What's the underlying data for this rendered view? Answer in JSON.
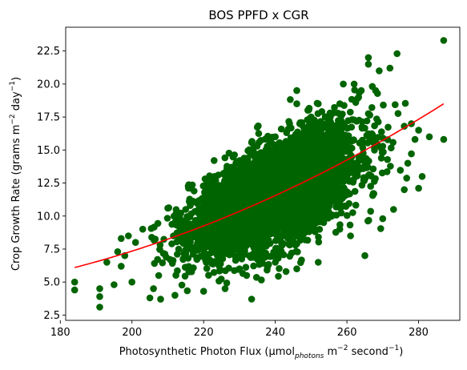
{
  "chart_data": {
    "type": "scatter",
    "title": "BOS PPFD x CGR",
    "xlabel": {
      "main": "Photosynthetic Photon Flux (µmol",
      "sub": "photons",
      "mid": " m",
      "sup1": "−2",
      "mid2": " second",
      "sup2": "−1",
      "end": ")"
    },
    "ylabel": {
      "main": "Crop Growth Rate (grams m",
      "sup1": "−2",
      "mid": " day",
      "sup2": "−1",
      "end": ")"
    },
    "xlim": [
      181.5,
      291.5
    ],
    "ylim": [
      2.1,
      24.3
    ],
    "xticks": [
      180,
      200,
      220,
      240,
      260,
      280
    ],
    "yticks": [
      2.5,
      5.0,
      7.5,
      10.0,
      12.5,
      15.0,
      17.5,
      20.0,
      22.5
    ],
    "xtick_labels": [
      "180",
      "200",
      "220",
      "240",
      "260",
      "280"
    ],
    "ytick_labels": [
      "2.5",
      "5.0",
      "7.5",
      "10.0",
      "12.5",
      "15.0",
      "17.5",
      "20.0",
      "22.5"
    ],
    "scatter_color": "#006400",
    "fit_color": "#ff0000",
    "cloud_point_count": 4200,
    "cloud_x_range": [
      205,
      275
    ],
    "outlier_points": [
      [
        184,
        5.0
      ],
      [
        184,
        4.4
      ],
      [
        191,
        3.1
      ],
      [
        191,
        3.9
      ],
      [
        191,
        4.5
      ],
      [
        193,
        6.5
      ],
      [
        195,
        4.8
      ],
      [
        196,
        7.3
      ],
      [
        197,
        8.3
      ],
      [
        198,
        7.0
      ],
      [
        199,
        8.5
      ],
      [
        197,
        6.2
      ],
      [
        200,
        5.0
      ],
      [
        201,
        8.0
      ],
      [
        203,
        9.0
      ],
      [
        205,
        3.8
      ],
      [
        206,
        4.5
      ],
      [
        208,
        3.7
      ],
      [
        212,
        4.0
      ],
      [
        210,
        10.6
      ],
      [
        215,
        10.5
      ],
      [
        221,
        11.5
      ],
      [
        223,
        13.0
      ],
      [
        226,
        12.7
      ],
      [
        229,
        14.0
      ],
      [
        236,
        14.8
      ],
      [
        240,
        16.0
      ],
      [
        244,
        17.0
      ],
      [
        246,
        18.5
      ],
      [
        246,
        19.5
      ],
      [
        250,
        17.5
      ],
      [
        252,
        18.5
      ],
      [
        254,
        17.5
      ],
      [
        258,
        18.5
      ],
      [
        259,
        20.0
      ],
      [
        262,
        20.0
      ],
      [
        264,
        19.5
      ],
      [
        266,
        21.5
      ],
      [
        266,
        22.0
      ],
      [
        268,
        19.5
      ],
      [
        269,
        21.0
      ],
      [
        272,
        21.2
      ],
      [
        274,
        22.3
      ],
      [
        276,
        16.8
      ],
      [
        278,
        17.0
      ],
      [
        280,
        16.5
      ],
      [
        276,
        12.0
      ],
      [
        280,
        12.1
      ],
      [
        281,
        13.0
      ],
      [
        287,
        15.8
      ],
      [
        287,
        23.3
      ],
      [
        270,
        9.8
      ],
      [
        265,
        7.0
      ],
      [
        261,
        8.5
      ],
      [
        258,
        9.0
      ],
      [
        252,
        6.5
      ],
      [
        246,
        6.0
      ],
      [
        240,
        6.5
      ],
      [
        243,
        5.8
      ],
      [
        232,
        5.5
      ],
      [
        226,
        4.5
      ],
      [
        220,
        4.3
      ],
      [
        230,
        6.0
      ],
      [
        273,
        10.5
      ],
      [
        277,
        14.0
      ],
      [
        283,
        16.0
      ],
      [
        279,
        15.8
      ]
    ],
    "fit": {
      "x_range": [
        184,
        287
      ],
      "coeffs": [
        0.0004905,
        -0.11063,
        9.85
      ]
    }
  }
}
